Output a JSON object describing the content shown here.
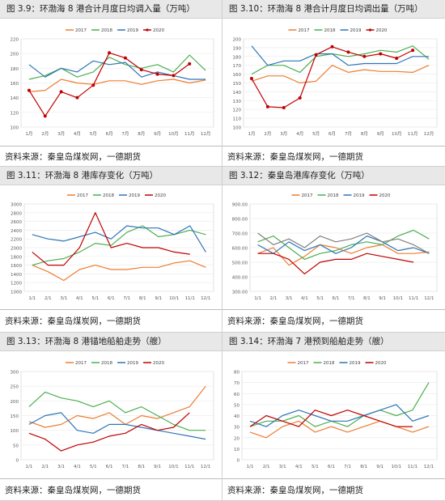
{
  "panels": [
    {
      "id": "p1",
      "title": "图 3.9：环渤海 8 港合计月度日均调入量（万吨）",
      "source": "资料来源：秦皇岛煤炭网，一德期货"
    },
    {
      "id": "p2",
      "title": "图 3.10：环渤海 8 港合计月度日均调出量（万吨）",
      "source": "资料来源：秦皇岛煤炭网，一德期货"
    },
    {
      "id": "p3",
      "title": "图 3.11：环渤海 8 港库存变化（万吨）",
      "source": "资料来源：秦皇岛煤炭网，一德期货"
    },
    {
      "id": "p4",
      "title": "图 3.12：秦皇岛港库存变化（万吨）",
      "source": "资料来源：秦皇岛煤炭网，一德期货"
    },
    {
      "id": "p5",
      "title": "图 3.13：环渤海 8 港锚地船舶走势（艘）",
      "source": "资料来源：秦皇岛煤炭网，一德期货"
    },
    {
      "id": "p6",
      "title": "图 3.14：环渤海 7 港预到船舶走势（艘）",
      "source": "资料来源：秦皇岛煤炭网，一德期货"
    }
  ],
  "chart_data": [
    {
      "type": "line",
      "categories": [
        "1月",
        "2月",
        "3月",
        "4月",
        "5月",
        "6月",
        "7月",
        "8月",
        "9月",
        "10月",
        "11月",
        "12月"
      ],
      "ylim": [
        100,
        220
      ],
      "yticks": [
        100,
        120,
        140,
        160,
        180,
        200,
        220
      ],
      "legend": "top",
      "series": [
        {
          "name": "2017",
          "color": "#ed7d31",
          "values": [
            148,
            150,
            165,
            160,
            158,
            163,
            163,
            158,
            163,
            165,
            160,
            164
          ]
        },
        {
          "name": "2018",
          "color": "#4caf50",
          "values": [
            165,
            170,
            180,
            168,
            175,
            195,
            185,
            180,
            185,
            175,
            198,
            177
          ]
        },
        {
          "name": "2019",
          "color": "#2e75b6",
          "values": [
            185,
            168,
            180,
            175,
            190,
            185,
            188,
            168,
            175,
            170,
            165,
            165
          ]
        },
        {
          "name": "2020",
          "color": "#c00000",
          "marker": true,
          "values": [
            150,
            115,
            148,
            140,
            157,
            201,
            194,
            178,
            172,
            170,
            186,
            null
          ]
        }
      ]
    },
    {
      "type": "line",
      "categories": [
        "1月",
        "2月",
        "3月",
        "4月",
        "5月",
        "6月",
        "7月",
        "8月",
        "9月",
        "10月",
        "11月",
        "12月"
      ],
      "ylim": [
        100,
        200
      ],
      "yticks": [
        100,
        110,
        120,
        130,
        140,
        150,
        160,
        170,
        180,
        190,
        200
      ],
      "legend": "top",
      "series": [
        {
          "name": "2017",
          "color": "#ed7d31",
          "values": [
            152,
            158,
            158,
            150,
            152,
            170,
            162,
            165,
            163,
            163,
            162,
            170
          ]
        },
        {
          "name": "2018",
          "color": "#4caf50",
          "values": [
            160,
            170,
            170,
            162,
            180,
            183,
            180,
            183,
            187,
            185,
            192,
            177
          ]
        },
        {
          "name": "2019",
          "color": "#2e75b6",
          "values": [
            192,
            170,
            175,
            175,
            183,
            183,
            170,
            172,
            172,
            172,
            180,
            180
          ]
        },
        {
          "name": "2020",
          "color": "#c00000",
          "marker": true,
          "values": [
            155,
            123,
            122,
            133,
            182,
            191,
            185,
            180,
            183,
            178,
            187,
            null
          ]
        }
      ]
    },
    {
      "type": "line",
      "categories": [
        "1/1",
        "2/1",
        "3/1",
        "4/1",
        "5/1",
        "6/1",
        "7/1",
        "8/1",
        "9/1",
        "10/1",
        "11/1",
        "12/1"
      ],
      "ylim": [
        1000,
        3000
      ],
      "yticks": [
        1000,
        1200,
        1400,
        1600,
        1800,
        2000,
        2200,
        2400,
        2600,
        2800,
        3000
      ],
      "legend": "top",
      "series": [
        {
          "name": "2017",
          "color": "#ed7d31",
          "values": [
            1600,
            1450,
            1250,
            1500,
            1600,
            1500,
            1500,
            1550,
            1550,
            1650,
            1700,
            1550
          ]
        },
        {
          "name": "2018",
          "color": "#4caf50",
          "values": [
            1600,
            1700,
            1750,
            1900,
            2100,
            2050,
            2350,
            2500,
            2250,
            2300,
            2400,
            2300
          ]
        },
        {
          "name": "2019",
          "color": "#2e75b6",
          "values": [
            2300,
            2200,
            2150,
            2250,
            2350,
            2200,
            2500,
            2450,
            2450,
            2300,
            2500,
            1900
          ]
        },
        {
          "name": "2020",
          "color": "#c00000",
          "values": [
            1900,
            1600,
            1600,
            2000,
            2800,
            2000,
            2100,
            2000,
            2000,
            1900,
            1850,
            null
          ]
        }
      ]
    },
    {
      "type": "line",
      "categories": [
        "1/1",
        "2/1",
        "3/1",
        "4/1",
        "5/1",
        "6/1",
        "7/1",
        "8/1",
        "9/1",
        "10/1",
        "11/1",
        "12/1"
      ],
      "ylim": [
        300,
        900
      ],
      "yticks": [
        300,
        400,
        500,
        600,
        700,
        800,
        900
      ],
      "yticklabels": [
        "300.00",
        "400.00",
        "500.00",
        "600.00",
        "700.00",
        "800.00",
        "900.00"
      ],
      "legend": "top",
      "series": [
        {
          "name": "2017",
          "color": "#ed7d31",
          "values": [
            560,
            600,
            480,
            540,
            620,
            600,
            560,
            600,
            620,
            560,
            560,
            570
          ]
        },
        {
          "name": "2018",
          "color": "#4caf50",
          "values": [
            640,
            680,
            600,
            520,
            560,
            580,
            620,
            640,
            620,
            680,
            720,
            660
          ]
        },
        {
          "name": "2019",
          "color": "#2e75b6",
          "values": [
            620,
            560,
            640,
            580,
            620,
            560,
            600,
            680,
            640,
            580,
            600,
            560
          ]
        },
        {
          "name": "2020",
          "color": "#c00000",
          "values": [
            560,
            560,
            520,
            420,
            500,
            520,
            520,
            560,
            540,
            520,
            500,
            null
          ]
        },
        {
          "name": "",
          "color": "#808080",
          "values": [
            700,
            620,
            660,
            600,
            680,
            640,
            660,
            700,
            640,
            660,
            620,
            560
          ]
        }
      ]
    },
    {
      "type": "line",
      "categories": [
        "1/1",
        "2/1",
        "3/1",
        "4/1",
        "5/1",
        "6/1",
        "7/1",
        "8/1",
        "9/1",
        "10/1",
        "11/1",
        "12/1"
      ],
      "ylim": [
        0,
        300
      ],
      "yticks": [
        0,
        50,
        100,
        150,
        200,
        250,
        300
      ],
      "legend": "top",
      "series": [
        {
          "name": "2017",
          "color": "#ed7d31",
          "values": [
            130,
            110,
            120,
            150,
            140,
            160,
            120,
            150,
            140,
            160,
            180,
            250
          ]
        },
        {
          "name": "2018",
          "color": "#4caf50",
          "values": [
            180,
            230,
            210,
            200,
            180,
            200,
            160,
            180,
            150,
            120,
            100,
            100
          ]
        },
        {
          "name": "2019",
          "color": "#2e75b6",
          "values": [
            120,
            150,
            160,
            100,
            90,
            120,
            120,
            110,
            100,
            90,
            80,
            70
          ]
        },
        {
          "name": "2020",
          "color": "#c00000",
          "values": [
            90,
            70,
            30,
            50,
            60,
            80,
            90,
            120,
            100,
            110,
            160,
            null
          ]
        }
      ]
    },
    {
      "type": "line",
      "categories": [
        "1/1",
        "2/1",
        "3/1",
        "4/1",
        "5/1",
        "6/1",
        "7/1",
        "8/1",
        "9/1",
        "10/1",
        "11/1",
        "12/1"
      ],
      "ylim": [
        0,
        80
      ],
      "yticks": [
        0,
        10,
        20,
        30,
        40,
        50,
        60,
        70,
        80
      ],
      "legend": "top",
      "series": [
        {
          "name": "2017",
          "color": "#ed7d31",
          "values": [
            25,
            20,
            30,
            35,
            25,
            30,
            25,
            30,
            35,
            30,
            25,
            30
          ]
        },
        {
          "name": "2018",
          "color": "#4caf50",
          "values": [
            30,
            35,
            35,
            40,
            30,
            35,
            30,
            40,
            45,
            40,
            45,
            70
          ]
        },
        {
          "name": "2019",
          "color": "#2e75b6",
          "values": [
            35,
            30,
            40,
            45,
            40,
            35,
            35,
            40,
            45,
            50,
            35,
            40
          ]
        },
        {
          "name": "2020",
          "color": "#c00000",
          "values": [
            30,
            40,
            35,
            30,
            45,
            40,
            45,
            40,
            35,
            30,
            30,
            null
          ]
        }
      ]
    }
  ]
}
